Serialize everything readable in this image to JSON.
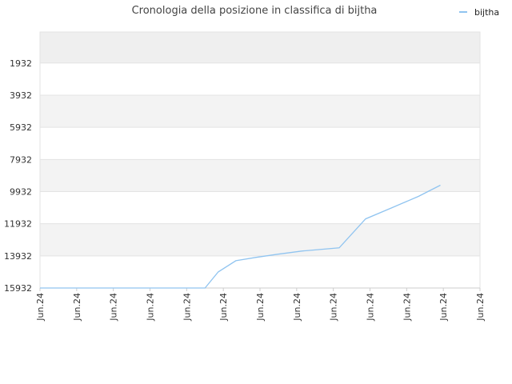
{
  "chart_data": {
    "type": "line",
    "title": "Cronologia della posizione in classifica di bijtha",
    "xlabel": "",
    "ylabel": "",
    "x_tick_labels": [
      "Jun.24",
      "Jun.24",
      "Jun.24",
      "Jun.24",
      "Jun.24",
      "Jun.24",
      "Jun.24",
      "Jun.24",
      "Jun.24",
      "Jun.24",
      "Jun.24",
      "Jun.24",
      "Jun.24"
    ],
    "y_tick_labels": [
      "1932",
      "3932",
      "5932",
      "7932",
      "9932",
      "11932",
      "13932",
      "15932"
    ],
    "ylim": [
      0,
      15932
    ],
    "y_reversed": true,
    "grid": true,
    "legend": {
      "position": "top-right",
      "entries": [
        "bijtha"
      ]
    },
    "series": [
      {
        "name": "bijtha",
        "color": "#90c4f0",
        "values": [
          15932,
          15932,
          15932,
          15932,
          15932,
          15932,
          14932,
          14232,
          14032,
          13832,
          13632,
          13432,
          11632,
          10932,
          10232,
          9532,
          10632
        ]
      }
    ]
  },
  "colors": {
    "band_dark": "#efefef",
    "band_light": "#f3f3f3",
    "grid": "#e3e3e3",
    "axis": "#cccccc"
  }
}
